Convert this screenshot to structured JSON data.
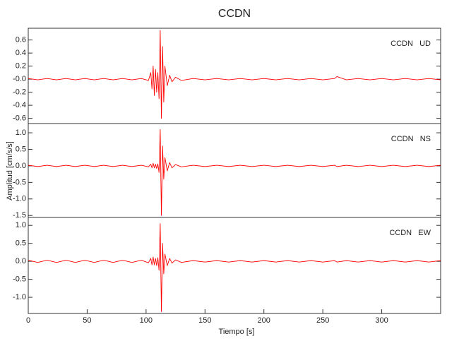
{
  "chart_data": [
    {
      "type": "line",
      "title": "CCDN",
      "label": "CCDN   UD",
      "x": [
        0,
        8,
        16,
        24,
        32,
        40,
        48,
        56,
        64,
        72,
        80,
        88,
        96,
        102,
        104,
        105,
        106,
        107,
        108,
        109,
        110,
        111,
        112,
        113,
        114,
        115,
        116,
        118,
        120,
        122,
        125,
        130,
        140,
        150,
        160,
        170,
        180,
        190,
        200,
        210,
        220,
        230,
        240,
        250,
        260,
        262,
        270,
        280,
        290,
        300,
        310,
        320,
        330,
        340,
        350
      ],
      "xlim": [
        0,
        350
      ],
      "ylim": [
        -0.68,
        0.78
      ],
      "yticks": [
        0.6,
        0.4,
        0.2,
        {
          "value": 0,
          "label": "-0.0"
        },
        -0.2,
        -0.4,
        -0.6
      ],
      "series": [
        {
          "color": "#ff0000",
          "values": [
            0.01,
            -0.01,
            0.01,
            -0.01,
            0.01,
            -0.01,
            0.01,
            -0.01,
            0.01,
            -0.01,
            0.01,
            -0.01,
            0.01,
            -0.02,
            0.1,
            -0.15,
            0.2,
            -0.25,
            0.15,
            -0.2,
            0.1,
            -0.3,
            0.75,
            -0.6,
            0.5,
            -0.35,
            0.2,
            -0.1,
            0.06,
            -0.04,
            0.03,
            -0.02,
            0.01,
            -0.01,
            0.01,
            -0.01,
            0.01,
            -0.01,
            0.01,
            -0.01,
            0.01,
            -0.01,
            0.01,
            -0.01,
            0.01,
            0.04,
            -0.01,
            0.01,
            -0.01,
            0.01,
            -0.01,
            0.01,
            -0.01,
            0.01,
            -0.01
          ]
        }
      ]
    },
    {
      "type": "line",
      "ylabel": "Amplitud [cm/s/s]",
      "label": "CCDN   NS",
      "x": [
        0,
        8,
        16,
        24,
        32,
        40,
        48,
        56,
        64,
        72,
        80,
        88,
        96,
        102,
        104,
        105,
        106,
        107,
        108,
        109,
        110,
        111,
        112,
        113,
        114,
        115,
        116,
        118,
        120,
        122,
        125,
        130,
        140,
        150,
        160,
        170,
        180,
        190,
        200,
        210,
        220,
        230,
        240,
        250,
        260,
        262,
        270,
        280,
        290,
        300,
        310,
        320,
        330,
        340,
        350
      ],
      "xlim": [
        0,
        350
      ],
      "ylim": [
        -1.56,
        1.28
      ],
      "yticks": [
        {
          "value": 1,
          "label": "1.0"
        },
        0.5,
        {
          "value": 0,
          "label": "0.0"
        },
        -0.5,
        {
          "value": -1,
          "label": "-1.0"
        },
        -1.5
      ],
      "series": [
        {
          "color": "#ff0000",
          "values": [
            0.02,
            -0.02,
            0.02,
            -0.02,
            0.02,
            -0.02,
            0.02,
            -0.02,
            0.02,
            -0.02,
            0.02,
            -0.02,
            0.02,
            -0.03,
            0.05,
            -0.06,
            0.08,
            -0.06,
            0.05,
            -0.08,
            0.06,
            -0.2,
            1.1,
            -1.5,
            0.6,
            -0.4,
            0.25,
            -0.15,
            0.1,
            -0.06,
            0.04,
            -0.03,
            0.02,
            -0.02,
            0.02,
            -0.02,
            0.02,
            -0.02,
            0.02,
            -0.02,
            0.02,
            -0.02,
            0.02,
            -0.02,
            0.02,
            -0.02,
            0.02,
            -0.02,
            0.02,
            -0.02,
            0.02,
            -0.02,
            0.02,
            -0.02,
            0.02
          ]
        }
      ]
    },
    {
      "type": "line",
      "xlabel": "Tiempo [s]",
      "label": "CCDN   EW",
      "x": [
        0,
        8,
        16,
        24,
        32,
        40,
        48,
        56,
        64,
        72,
        80,
        88,
        96,
        102,
        104,
        105,
        106,
        107,
        108,
        109,
        110,
        111,
        112,
        113,
        114,
        115,
        116,
        118,
        120,
        122,
        125,
        130,
        140,
        150,
        160,
        170,
        180,
        190,
        200,
        210,
        220,
        230,
        240,
        250,
        260,
        262,
        270,
        280,
        290,
        300,
        310,
        320,
        330,
        340,
        350
      ],
      "xlim": [
        0,
        350
      ],
      "ylim": [
        -1.45,
        1.22
      ],
      "xticks": [
        0,
        50,
        100,
        150,
        200,
        250,
        300
      ],
      "yticks": [
        {
          "value": 1,
          "label": "1.0"
        },
        0.5,
        {
          "value": 0,
          "label": "0.0"
        },
        -0.5,
        {
          "value": -1,
          "label": "-1.0"
        }
      ],
      "series": [
        {
          "color": "#ff0000",
          "values": [
            0.03,
            -0.03,
            0.03,
            -0.03,
            0.03,
            -0.03,
            0.03,
            -0.03,
            0.03,
            -0.03,
            0.03,
            -0.03,
            0.03,
            -0.04,
            0.08,
            -0.1,
            0.12,
            -0.1,
            0.08,
            -0.12,
            0.1,
            -0.25,
            1.05,
            -1.4,
            0.5,
            -0.35,
            0.2,
            -0.12,
            0.08,
            -0.05,
            0.04,
            -0.03,
            0.02,
            -0.02,
            0.02,
            -0.02,
            0.02,
            -0.02,
            0.02,
            -0.02,
            0.02,
            -0.02,
            0.02,
            -0.02,
            0.02,
            -0.02,
            0.02,
            -0.02,
            0.02,
            -0.02,
            0.02,
            -0.02,
            0.02,
            -0.02,
            0.02
          ]
        }
      ]
    }
  ]
}
